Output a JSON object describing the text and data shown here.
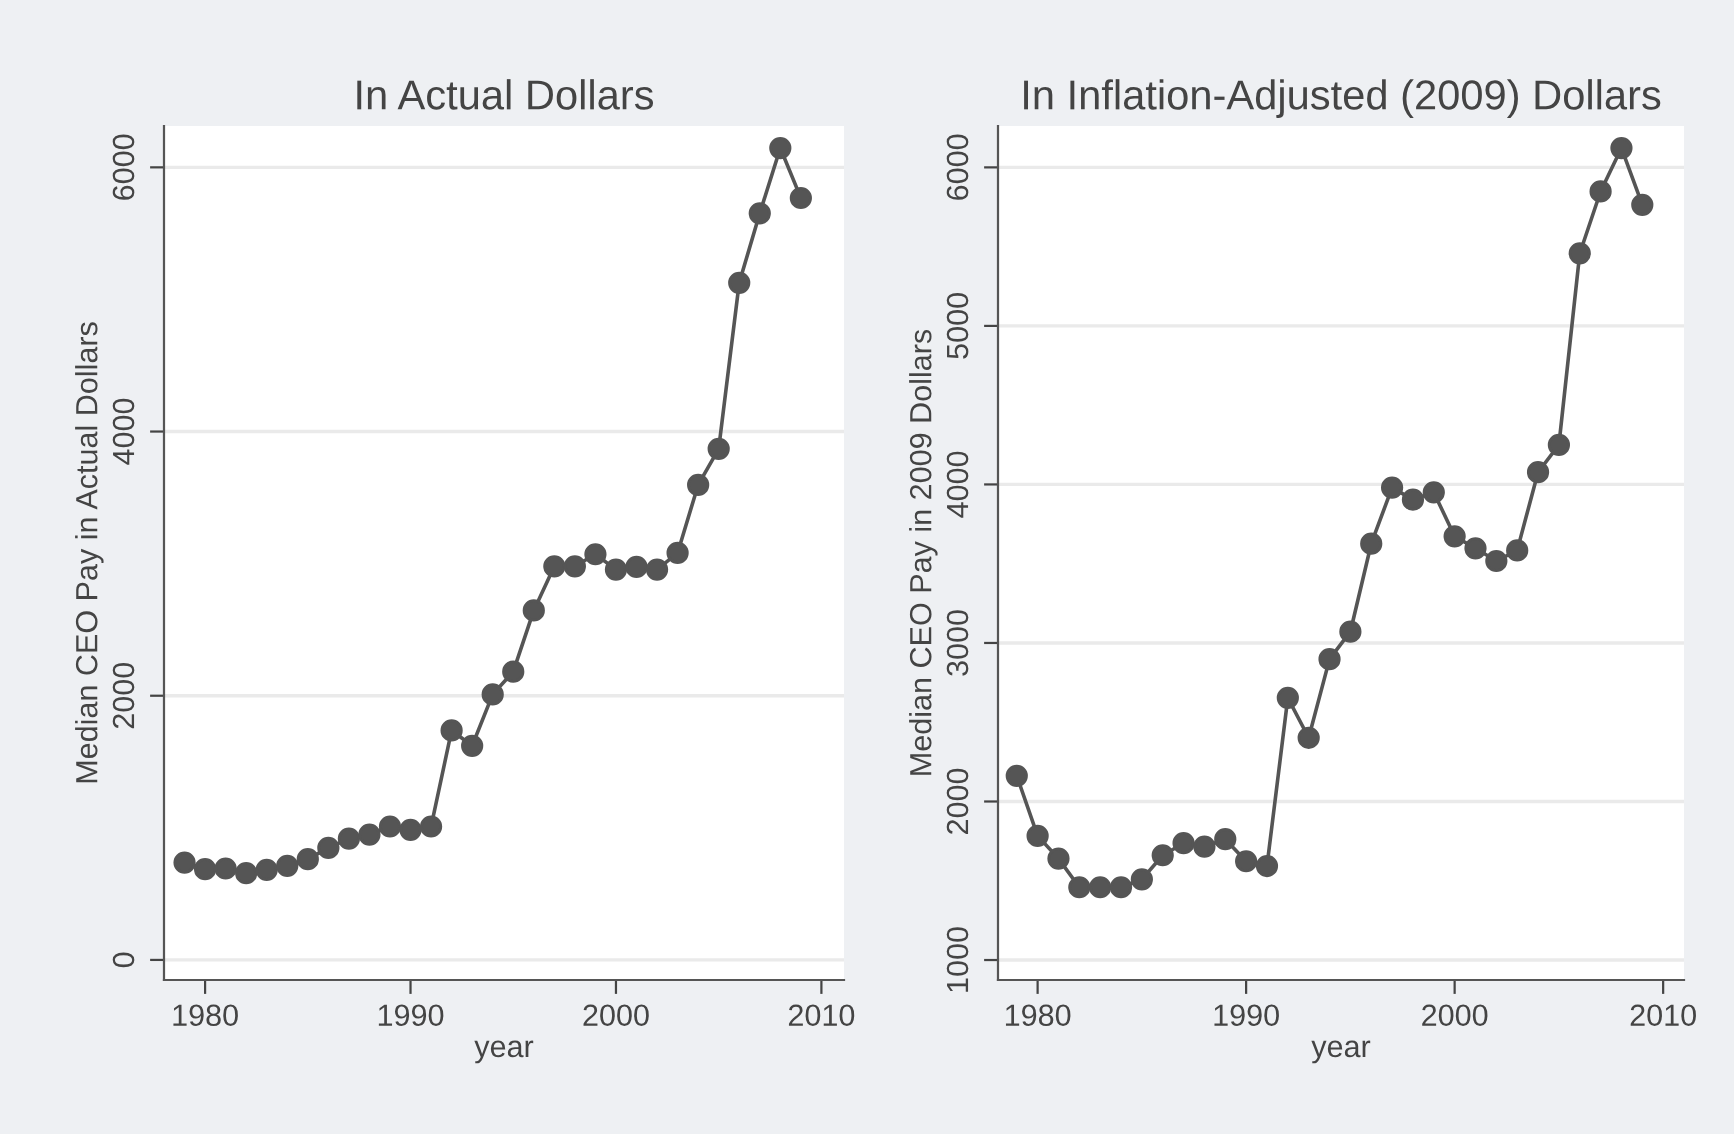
{
  "chart_data": [
    {
      "type": "line",
      "title": "In Actual Dollars",
      "xlabel": "year",
      "ylabel": "Median CEO Pay in Actual Dollars",
      "x": [
        1979,
        1980,
        1981,
        1982,
        1983,
        1984,
        1985,
        1986,
        1987,
        1988,
        1989,
        1990,
        1991,
        1992,
        1993,
        1994,
        1995,
        1996,
        1997,
        1998,
        1999,
        2000,
        2001,
        2002,
        2003,
        2004,
        2005,
        2006,
        2007,
        2008,
        2009
      ],
      "series": [
        {
          "color": "#555555",
          "values": [
            737,
            687,
            692,
            657,
            682,
            712,
            763,
            848,
            919,
            949,
            1010,
            985,
            1010,
            1737,
            1621,
            2010,
            2182,
            2646,
            2980,
            2980,
            3071,
            2955,
            2975,
            2955,
            3081,
            3596,
            3869,
            5126,
            5652,
            6146,
            5768
          ]
        }
      ],
      "xlim": [
        1978,
        2011.1
      ],
      "xticks": [
        1980,
        1990,
        2000,
        2010
      ],
      "ylim": [
        -152,
        6313
      ],
      "yticks": [
        0,
        2000,
        4000,
        6000
      ],
      "grid": "y",
      "marker": "circle",
      "line_style": "solid",
      "legend": false
    },
    {
      "type": "line",
      "title": "In Inflation-Adjusted (2009) Dollars",
      "xlabel": "year",
      "ylabel": "Median CEO Pay in 2009 Dollars",
      "x": [
        1979,
        1980,
        1981,
        1982,
        1983,
        1984,
        1985,
        1986,
        1987,
        1988,
        1989,
        1990,
        1991,
        1992,
        1993,
        1994,
        1995,
        1996,
        1997,
        1998,
        1999,
        2000,
        2001,
        2002,
        2003,
        2004,
        2005,
        2006,
        2007,
        2008,
        2009
      ],
      "series": [
        {
          "color": "#555555",
          "values": [
            2162,
            1783,
            1640,
            1459,
            1459,
            1459,
            1509,
            1661,
            1737,
            1715,
            1762,
            1623,
            1593,
            2654,
            2402,
            2898,
            3071,
            3626,
            3980,
            3904,
            3950,
            3673,
            3597,
            3517,
            3584,
            4077,
            4249,
            5457,
            5848,
            6122,
            5764
          ]
        }
      ],
      "xlim": [
        1978.1,
        2011
      ],
      "xticks": [
        1980,
        1990,
        2000,
        2010
      ],
      "ylim": [
        874,
        6261
      ],
      "yticks": [
        1000,
        2000,
        3000,
        4000,
        5000,
        6000
      ],
      "grid": "y",
      "marker": "circle",
      "line_style": "solid",
      "legend": false
    }
  ]
}
